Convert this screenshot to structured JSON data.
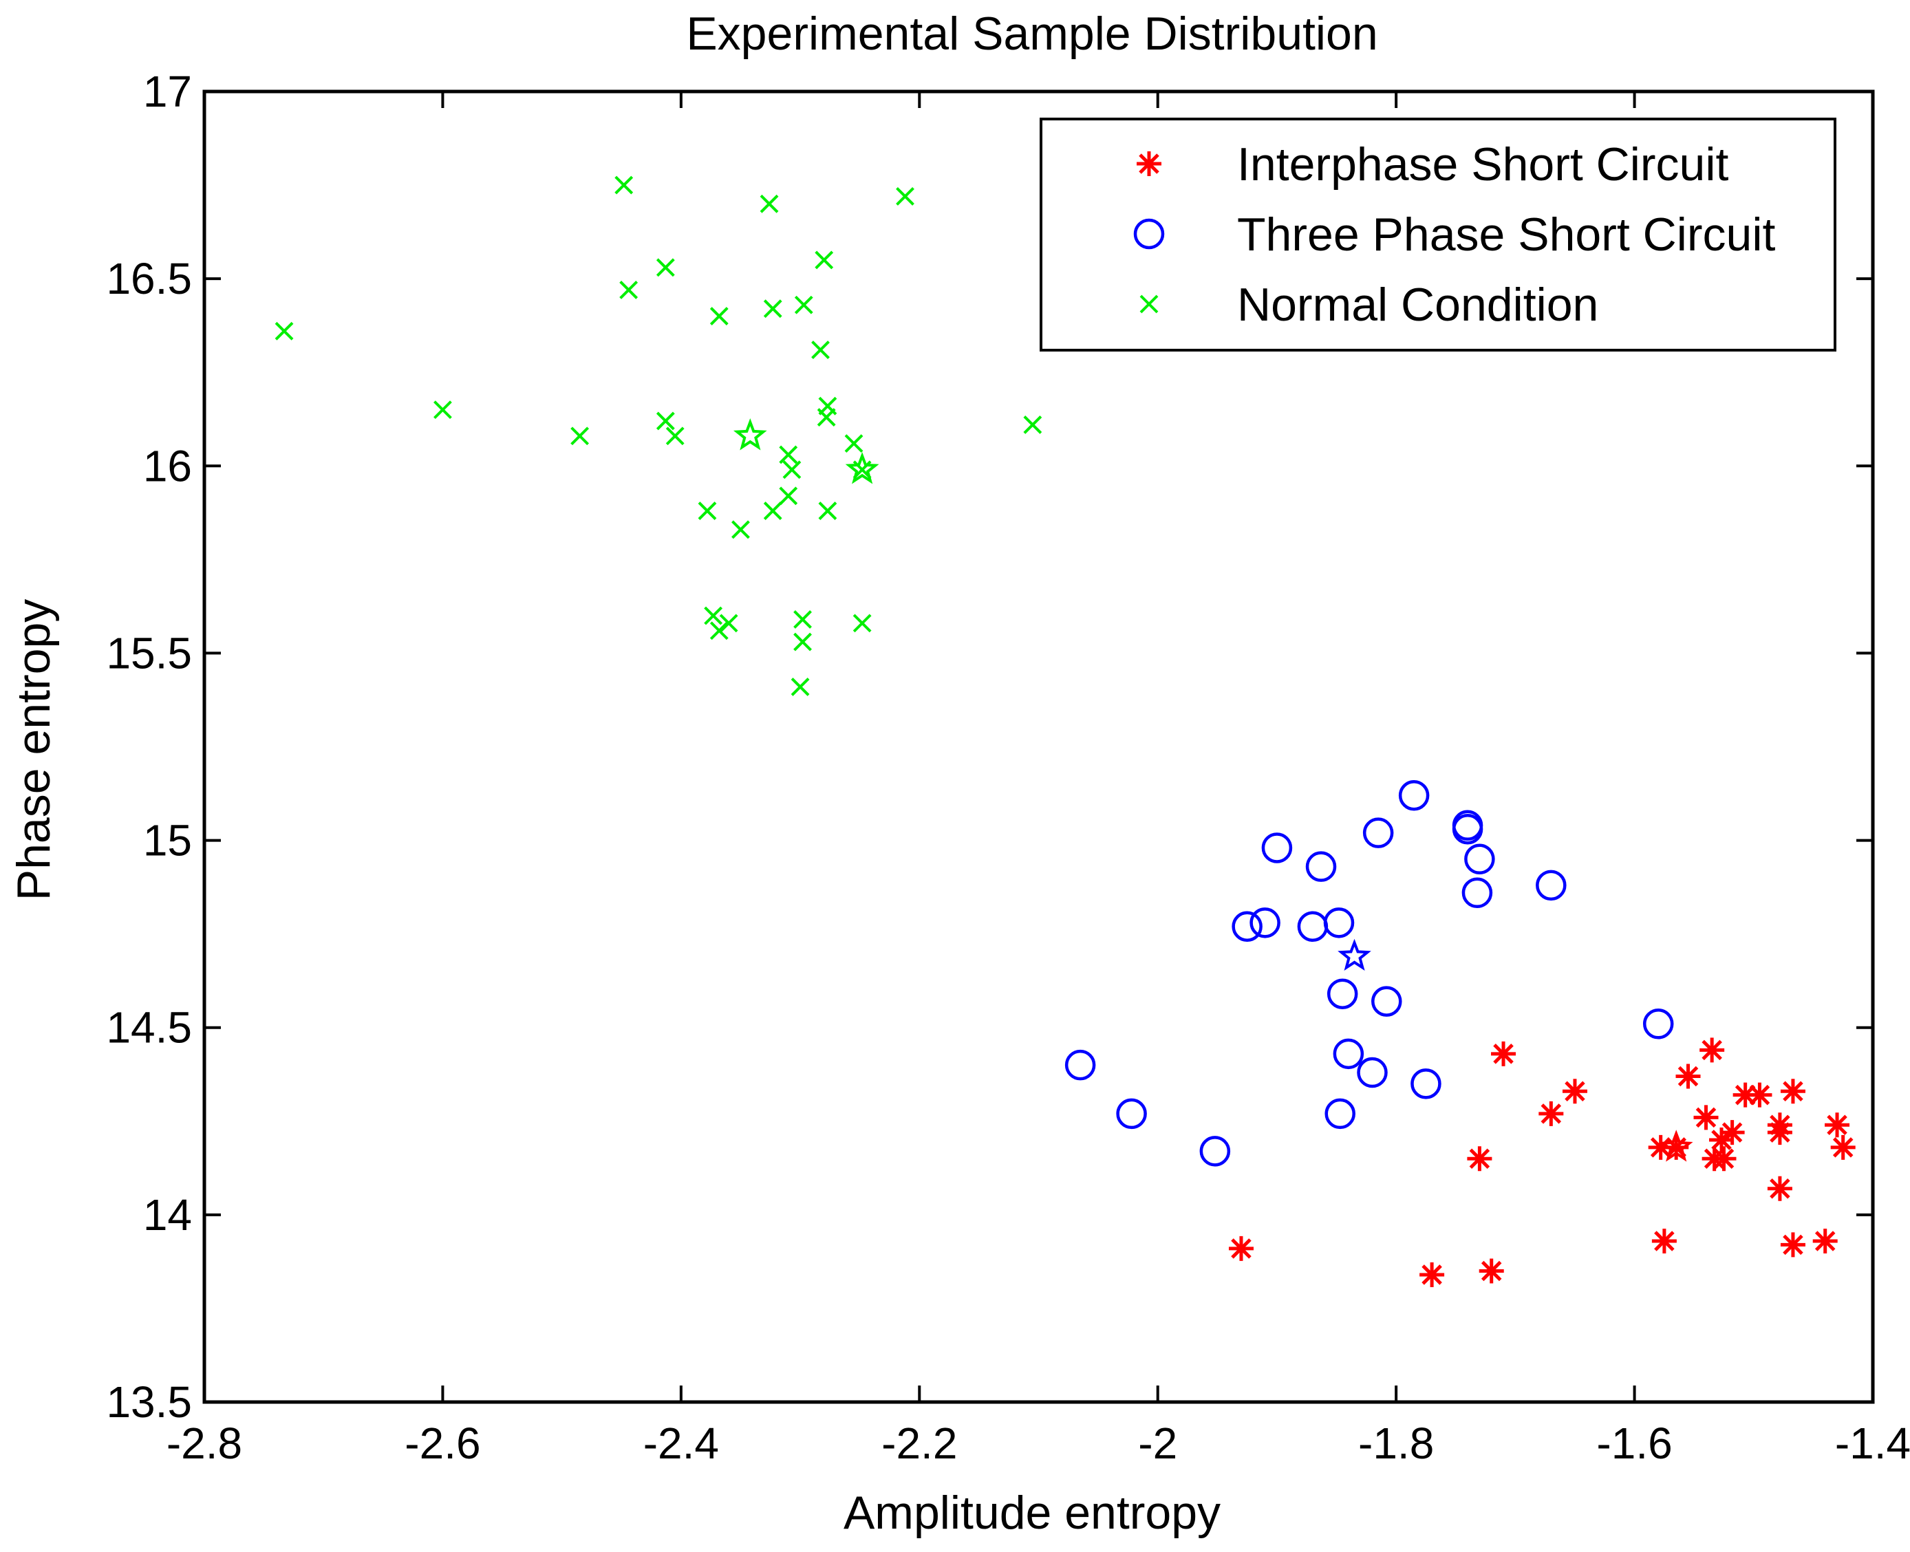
{
  "chart_data": {
    "type": "scatter",
    "title": "Experimental Sample Distribution",
    "xlabel": "Amplitude entropy",
    "ylabel": "Phase entropy",
    "xlim": [
      -2.8,
      -1.4
    ],
    "ylim": [
      13.5,
      17
    ],
    "xticks": [
      "-2.8",
      "-2.6",
      "-2.4",
      "-2.2",
      "-2",
      "-1.8",
      "-1.6",
      "-1.4"
    ],
    "yticks": [
      "13.5",
      "14",
      "14.5",
      "15",
      "15.5",
      "16",
      "16.5",
      "17"
    ],
    "grid": false,
    "legend_position": "top-right",
    "series": [
      {
        "name": "Interphase Short Circuit",
        "marker": "asterisk",
        "color": "#ff0000",
        "points": [
          [
            -1.71,
            14.43
          ],
          [
            -1.65,
            14.33
          ],
          [
            -1.67,
            14.27
          ],
          [
            -1.73,
            14.15
          ],
          [
            -1.93,
            13.91
          ],
          [
            -1.77,
            13.84
          ],
          [
            -1.72,
            13.85
          ],
          [
            -1.535,
            14.44
          ],
          [
            -1.555,
            14.37
          ],
          [
            -1.507,
            14.32
          ],
          [
            -1.495,
            14.32
          ],
          [
            -1.467,
            14.33
          ],
          [
            -1.54,
            14.26
          ],
          [
            -1.518,
            14.22
          ],
          [
            -1.527,
            14.2
          ],
          [
            -1.478,
            14.24
          ],
          [
            -1.478,
            14.22
          ],
          [
            -1.43,
            14.24
          ],
          [
            -1.578,
            14.18
          ],
          [
            -1.565,
            14.18
          ],
          [
            -1.533,
            14.15
          ],
          [
            -1.525,
            14.15
          ],
          [
            -1.425,
            14.18
          ],
          [
            -1.478,
            14.07
          ],
          [
            -1.575,
            13.93
          ],
          [
            -1.467,
            13.92
          ],
          [
            -1.44,
            13.93
          ]
        ]
      },
      {
        "name": "Three Phase Short Circuit",
        "marker": "circle",
        "color": "#0000ff",
        "points": [
          [
            -1.785,
            15.12
          ],
          [
            -1.74,
            15.04
          ],
          [
            -1.74,
            15.03
          ],
          [
            -1.815,
            15.02
          ],
          [
            -1.9,
            14.98
          ],
          [
            -1.73,
            14.95
          ],
          [
            -1.863,
            14.93
          ],
          [
            -1.67,
            14.88
          ],
          [
            -1.732,
            14.86
          ],
          [
            -1.925,
            14.77
          ],
          [
            -1.91,
            14.78
          ],
          [
            -1.87,
            14.77
          ],
          [
            -1.848,
            14.78
          ],
          [
            -1.845,
            14.59
          ],
          [
            -1.808,
            14.57
          ],
          [
            -1.58,
            14.51
          ],
          [
            -1.84,
            14.43
          ],
          [
            -2.065,
            14.4
          ],
          [
            -1.82,
            14.38
          ],
          [
            -1.775,
            14.35
          ],
          [
            -2.022,
            14.27
          ],
          [
            -1.847,
            14.27
          ],
          [
            -1.952,
            14.17
          ]
        ]
      },
      {
        "name": "Normal Condition",
        "marker": "x",
        "color": "#00ee00",
        "points": [
          [
            -2.448,
            16.75
          ],
          [
            -2.212,
            16.72
          ],
          [
            -2.326,
            16.7
          ],
          [
            -2.28,
            16.55
          ],
          [
            -2.413,
            16.53
          ],
          [
            -2.444,
            16.47
          ],
          [
            -2.297,
            16.43
          ],
          [
            -2.323,
            16.42
          ],
          [
            -2.368,
            16.4
          ],
          [
            -2.733,
            16.36
          ],
          [
            -2.283,
            16.31
          ],
          [
            -2.6,
            16.15
          ],
          [
            -2.277,
            16.16
          ],
          [
            -2.278,
            16.13
          ],
          [
            -2.413,
            16.12
          ],
          [
            -2.105,
            16.11
          ],
          [
            -2.485,
            16.08
          ],
          [
            -2.405,
            16.08
          ],
          [
            -2.255,
            16.06
          ],
          [
            -2.31,
            16.03
          ],
          [
            -2.307,
            15.99
          ],
          [
            -2.248,
            15.99
          ],
          [
            -2.31,
            15.92
          ],
          [
            -2.378,
            15.88
          ],
          [
            -2.323,
            15.88
          ],
          [
            -2.277,
            15.88
          ],
          [
            -2.35,
            15.83
          ],
          [
            -2.373,
            15.6
          ],
          [
            -2.36,
            15.58
          ],
          [
            -2.368,
            15.56
          ],
          [
            -2.298,
            15.59
          ],
          [
            -2.298,
            15.53
          ],
          [
            -2.248,
            15.58
          ],
          [
            -2.3,
            15.41
          ]
        ]
      }
    ],
    "centroids": [
      {
        "marker": "star",
        "color": "#00ee00",
        "point": [
          -2.342,
          16.08
        ]
      },
      {
        "marker": "star",
        "color": "#00ee00",
        "point": [
          -2.248,
          15.99
        ]
      },
      {
        "marker": "star",
        "color": "#0000ff",
        "point": [
          -1.835,
          14.69
        ]
      },
      {
        "marker": "star",
        "color": "#ff0000",
        "point": [
          -1.565,
          14.18
        ]
      }
    ]
  }
}
